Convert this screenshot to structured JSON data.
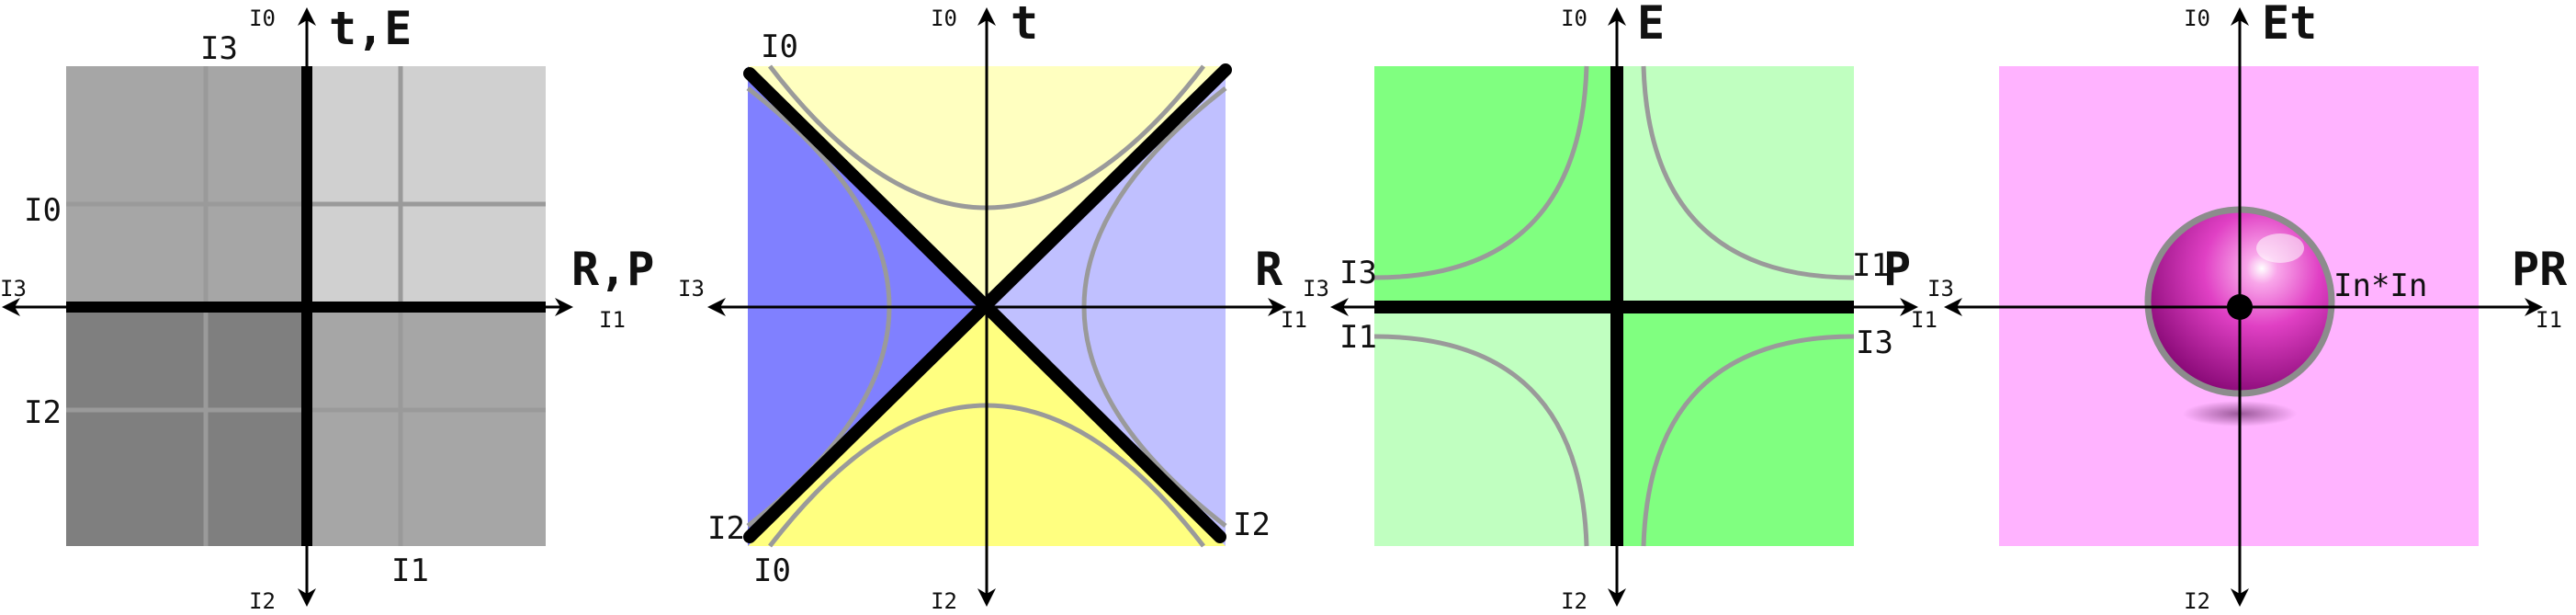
{
  "panels": [
    {
      "id": "p1",
      "vertical_label": "t,E",
      "horizontal_label": "R,P",
      "axis_labels": {
        "top": "I0",
        "bottom": "I2",
        "left": "I3",
        "right": "I1"
      },
      "quadrant_labels": {
        "top_inner": "I3",
        "left_upper": "I0",
        "left_lower": "I2",
        "bottom_inner": "I1"
      },
      "colors": {
        "upper_left": "#a6a6a6",
        "upper_right": "#d0d0d0",
        "lower_left": "#7f7f7f",
        "lower_right": "#a6a6a6",
        "grid": "#9a9a9a"
      }
    },
    {
      "id": "p2",
      "vertical_label": "t",
      "horizontal_label": "R",
      "axis_labels": {
        "top": "I0",
        "bottom": "I2",
        "left": "I3",
        "right": "I1"
      },
      "corner_labels": {
        "top_left": "I0",
        "bottom_left_upper": "I2",
        "bottom_left_lower": "I0",
        "bottom_right": "I2"
      },
      "colors": {
        "top": "#ffffc0",
        "bottom": "#ffff80",
        "left": "#8080ff",
        "right": "#c0c0ff",
        "curve": "#9a9a9a"
      }
    },
    {
      "id": "p3",
      "vertical_label": "E",
      "horizontal_label": "P",
      "axis_labels": {
        "top": "I0",
        "bottom": "I2",
        "left": "I3",
        "right": "I1"
      },
      "side_labels": {
        "left_upper": "I3",
        "left_lower": "I1",
        "right_upper": "I1",
        "right_lower": "I3"
      },
      "colors": {
        "dark": "#80ff80",
        "light": "#c0ffc0",
        "curve": "#9a9a9a"
      }
    },
    {
      "id": "p4",
      "vertical_label": "Et",
      "horizontal_label": "PR",
      "axis_labels": {
        "top": "I0",
        "bottom": "I2",
        "left": "I3",
        "right": "I1"
      },
      "sphere_label": "In*In",
      "colors": {
        "background": "#ffb3ff",
        "sphere": "#dd33bb",
        "sphere_ring": "#8c8c8c"
      }
    }
  ]
}
